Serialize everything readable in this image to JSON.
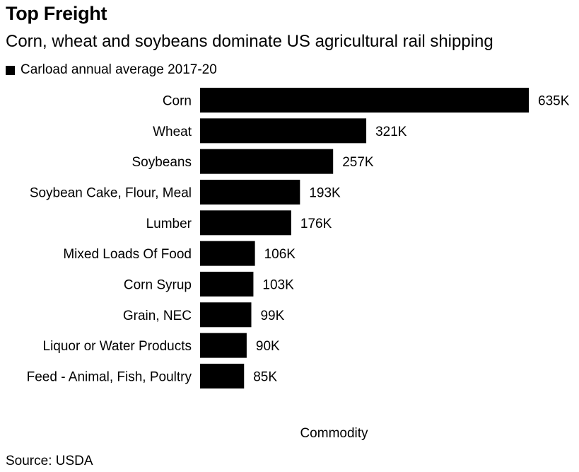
{
  "chart_data": {
    "type": "bar",
    "orientation": "horizontal",
    "title": "Top Freight",
    "subtitle": "Corn, wheat and soybeans dominate US agricultural rail shipping",
    "series": [
      {
        "name": "Carload annual average 2017-20",
        "color": "#000000",
        "values": [
          635,
          321,
          257,
          193,
          176,
          106,
          103,
          99,
          90,
          85
        ]
      }
    ],
    "categories": [
      "Corn",
      "Wheat",
      "Soybeans",
      "Soybean Cake, Flour, Meal",
      "Lumber",
      "Mixed Loads Of Food",
      "Corn Syrup",
      "Grain, NEC",
      "Liquor or Water Products",
      "Feed - Animal, Fish, Poultry"
    ],
    "data_labels": [
      "635K",
      "321K",
      "257K",
      "193K",
      "176K",
      "106K",
      "103K",
      "99K",
      "90K",
      "85K"
    ],
    "xlabel": "Commodity",
    "ylabel": "",
    "grid": false,
    "legend_position": "top-left"
  },
  "source": "Source: USDA"
}
